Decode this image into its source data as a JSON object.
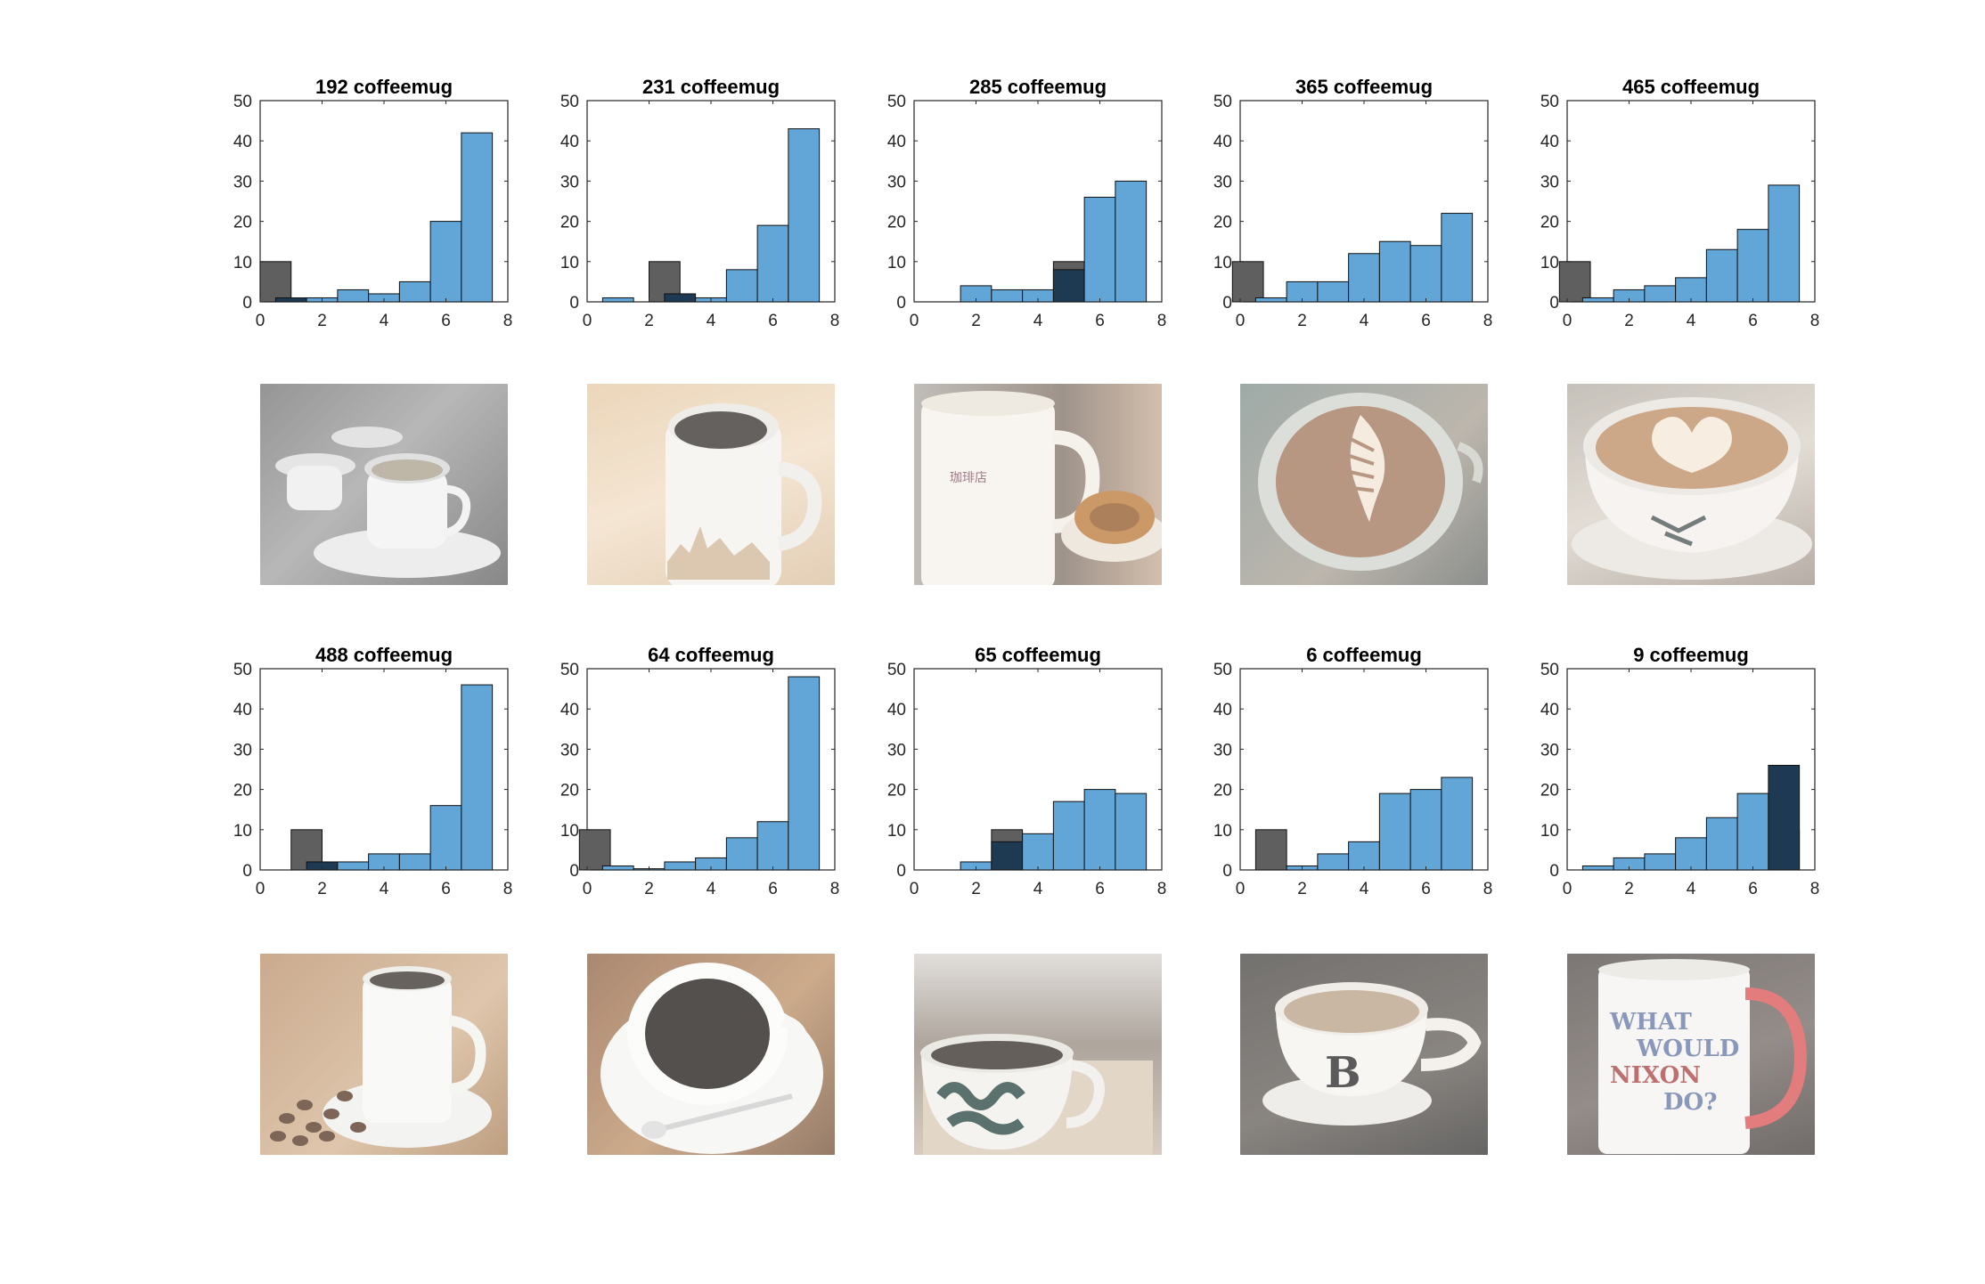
{
  "chart_data": [
    {
      "type": "bar",
      "title": "192 coffeemug",
      "xlim": [
        0,
        8
      ],
      "ylim": [
        0,
        50
      ],
      "xticks": [
        0,
        2,
        4,
        6,
        8
      ],
      "yticks": [
        0,
        10,
        20,
        30,
        40,
        50
      ],
      "bin_width": 1,
      "series": [
        {
          "values": [
            {
              "x": 0.5,
              "y": 10
            }
          ]
        },
        {
          "values": [
            {
              "x": 1,
              "y": 1
            },
            {
              "x": 2,
              "y": 1
            },
            {
              "x": 3,
              "y": 3
            },
            {
              "x": 4,
              "y": 2
            },
            {
              "x": 5,
              "y": 5
            },
            {
              "x": 6,
              "y": 20
            },
            {
              "x": 7,
              "y": 42
            }
          ]
        }
      ]
    },
    {
      "type": "bar",
      "title": "231 coffeemug",
      "xlim": [
        0,
        8
      ],
      "ylim": [
        0,
        50
      ],
      "xticks": [
        0,
        2,
        4,
        6,
        8
      ],
      "yticks": [
        0,
        10,
        20,
        30,
        40,
        50
      ],
      "bin_width": 1,
      "series": [
        {
          "values": [
            {
              "x": 2.5,
              "y": 10
            }
          ]
        },
        {
          "values": [
            {
              "x": 1,
              "y": 1
            },
            {
              "x": 3,
              "y": 2
            },
            {
              "x": 4,
              "y": 1
            },
            {
              "x": 5,
              "y": 8
            },
            {
              "x": 6,
              "y": 19
            },
            {
              "x": 7,
              "y": 43
            }
          ]
        }
      ]
    },
    {
      "type": "bar",
      "title": "285 coffeemug",
      "xlim": [
        0,
        8
      ],
      "ylim": [
        0,
        50
      ],
      "xticks": [
        0,
        2,
        4,
        6,
        8
      ],
      "yticks": [
        0,
        10,
        20,
        30,
        40,
        50
      ],
      "bin_width": 1,
      "series": [
        {
          "values": [
            {
              "x": 5,
              "y": 10
            }
          ]
        },
        {
          "values": [
            {
              "x": 2,
              "y": 4
            },
            {
              "x": 3,
              "y": 3
            },
            {
              "x": 4,
              "y": 3
            },
            {
              "x": 5,
              "y": 8
            },
            {
              "x": 6,
              "y": 26
            },
            {
              "x": 7,
              "y": 30
            }
          ]
        }
      ]
    },
    {
      "type": "bar",
      "title": "365 coffeemug",
      "xlim": [
        0,
        8
      ],
      "ylim": [
        0,
        50
      ],
      "xticks": [
        0,
        2,
        4,
        6,
        8
      ],
      "yticks": [
        0,
        10,
        20,
        30,
        40,
        50
      ],
      "bin_width": 1,
      "series": [
        {
          "values": [
            {
              "x": 0.25,
              "y": 10
            }
          ]
        },
        {
          "values": [
            {
              "x": 1,
              "y": 1
            },
            {
              "x": 2,
              "y": 5
            },
            {
              "x": 3,
              "y": 5
            },
            {
              "x": 4,
              "y": 12
            },
            {
              "x": 5,
              "y": 15
            },
            {
              "x": 6,
              "y": 14
            },
            {
              "x": 7,
              "y": 22
            }
          ]
        }
      ]
    },
    {
      "type": "bar",
      "title": "465 coffeemug",
      "xlim": [
        0,
        8
      ],
      "ylim": [
        0,
        50
      ],
      "xticks": [
        0,
        2,
        4,
        6,
        8
      ],
      "yticks": [
        0,
        10,
        20,
        30,
        40,
        50
      ],
      "bin_width": 1,
      "series": [
        {
          "values": [
            {
              "x": 0.25,
              "y": 10
            }
          ]
        },
        {
          "values": [
            {
              "x": 1,
              "y": 1
            },
            {
              "x": 2,
              "y": 3
            },
            {
              "x": 3,
              "y": 4
            },
            {
              "x": 4,
              "y": 6
            },
            {
              "x": 5,
              "y": 13
            },
            {
              "x": 6,
              "y": 18
            },
            {
              "x": 7,
              "y": 29
            }
          ]
        }
      ]
    },
    {
      "type": "bar",
      "title": "488 coffeemug",
      "xlim": [
        0,
        8
      ],
      "ylim": [
        0,
        50
      ],
      "xticks": [
        0,
        2,
        4,
        6,
        8
      ],
      "yticks": [
        0,
        10,
        20,
        30,
        40,
        50
      ],
      "bin_width": 1,
      "series": [
        {
          "values": [
            {
              "x": 1.5,
              "y": 10
            }
          ]
        },
        {
          "values": [
            {
              "x": 2,
              "y": 2
            },
            {
              "x": 3,
              "y": 2
            },
            {
              "x": 4,
              "y": 4
            },
            {
              "x": 5,
              "y": 4
            },
            {
              "x": 6,
              "y": 16
            },
            {
              "x": 7,
              "y": 46
            }
          ]
        }
      ]
    },
    {
      "type": "bar",
      "title": "64 coffeemug",
      "xlim": [
        0,
        8
      ],
      "ylim": [
        0,
        50
      ],
      "xticks": [
        0,
        2,
        4,
        6,
        8
      ],
      "yticks": [
        0,
        10,
        20,
        30,
        40,
        50
      ],
      "bin_width": 1,
      "series": [
        {
          "values": [
            {
              "x": 0.25,
              "y": 10
            }
          ]
        },
        {
          "values": [
            {
              "x": 1,
              "y": 1
            },
            {
              "x": 2,
              "y": 0.3
            },
            {
              "x": 3,
              "y": 2
            },
            {
              "x": 4,
              "y": 3
            },
            {
              "x": 5,
              "y": 8
            },
            {
              "x": 6,
              "y": 12
            },
            {
              "x": 7,
              "y": 48
            }
          ]
        }
      ]
    },
    {
      "type": "bar",
      "title": "65 coffeemug",
      "xlim": [
        0,
        8
      ],
      "ylim": [
        0,
        50
      ],
      "xticks": [
        0,
        2,
        4,
        6,
        8
      ],
      "yticks": [
        0,
        10,
        20,
        30,
        40,
        50
      ],
      "bin_width": 1,
      "series": [
        {
          "values": [
            {
              "x": 3,
              "y": 10
            }
          ]
        },
        {
          "values": [
            {
              "x": 2,
              "y": 2
            },
            {
              "x": 3,
              "y": 7
            },
            {
              "x": 4,
              "y": 9
            },
            {
              "x": 5,
              "y": 17
            },
            {
              "x": 6,
              "y": 20
            },
            {
              "x": 7,
              "y": 19
            }
          ]
        }
      ]
    },
    {
      "type": "bar",
      "title": "6 coffeemug",
      "xlim": [
        0,
        8
      ],
      "ylim": [
        0,
        50
      ],
      "xticks": [
        0,
        2,
        4,
        6,
        8
      ],
      "yticks": [
        0,
        10,
        20,
        30,
        40,
        50
      ],
      "bin_width": 1,
      "series": [
        {
          "values": [
            {
              "x": 1,
              "y": 10
            }
          ]
        },
        {
          "values": [
            {
              "x": 2,
              "y": 1
            },
            {
              "x": 3,
              "y": 4
            },
            {
              "x": 4,
              "y": 7
            },
            {
              "x": 5,
              "y": 19
            },
            {
              "x": 6,
              "y": 20
            },
            {
              "x": 7,
              "y": 23
            }
          ]
        }
      ]
    },
    {
      "type": "bar",
      "title": "9 coffeemug",
      "xlim": [
        0,
        8
      ],
      "ylim": [
        0,
        50
      ],
      "xticks": [
        0,
        2,
        4,
        6,
        8
      ],
      "yticks": [
        0,
        10,
        20,
        30,
        40,
        50
      ],
      "bin_width": 1,
      "series": [
        {
          "values": [
            {
              "x": 7,
              "y": 10
            }
          ]
        },
        {
          "values": [
            {
              "x": 1,
              "y": 1
            },
            {
              "x": 2,
              "y": 3
            },
            {
              "x": 3,
              "y": 4
            },
            {
              "x": 4,
              "y": 8
            },
            {
              "x": 5,
              "y": 13
            },
            {
              "x": 6,
              "y": 19
            },
            {
              "x": 7,
              "y": 26
            }
          ]
        }
      ]
    }
  ],
  "colors": {
    "reference_bar": "#5f5f5f",
    "histogram_bar": "#62a6d8",
    "overlap_bar": "#1e3a52",
    "axes": "#262626"
  },
  "photos": [
    {
      "name": "photo-192-coffeemug",
      "icon": "coffee-cup-on-saucer-grayscale"
    },
    {
      "name": "photo-231-coffeemug",
      "icon": "mug-with-skyline-print"
    },
    {
      "name": "photo-285-coffeemug",
      "icon": "white-mug-with-waffle"
    },
    {
      "name": "photo-365-coffeemug",
      "icon": "latte-art-leaf"
    },
    {
      "name": "photo-465-coffeemug",
      "icon": "latte-art-heart"
    },
    {
      "name": "photo-488-coffeemug",
      "icon": "white-mug-with-coffee-beans"
    },
    {
      "name": "photo-64-coffeemug",
      "icon": "black-coffee-top-view"
    },
    {
      "name": "photo-65-coffeemug",
      "icon": "patterned-mug"
    },
    {
      "name": "photo-6-coffeemug",
      "icon": "tea-cup-letter-b"
    },
    {
      "name": "photo-9-coffeemug",
      "icon": "nixon-slogan-mug",
      "text_lines": [
        "WHAT",
        "WOULD",
        "NIXON",
        "DO?"
      ]
    }
  ]
}
